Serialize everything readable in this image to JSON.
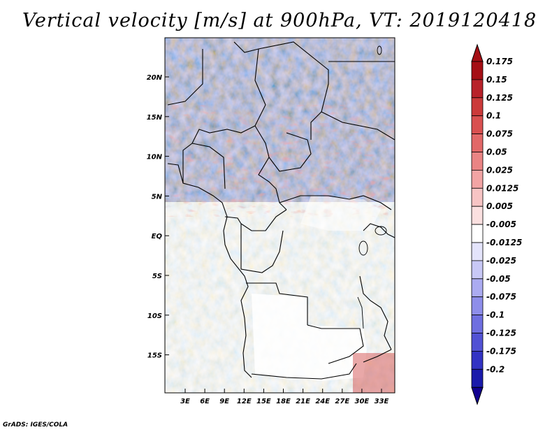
{
  "title": "Vertical velocity [m/s] at 900hPa, VT: 2019120418",
  "credit": "GrADS: IGES/COLA",
  "map": {
    "lat_labels": [
      "20N",
      "15N",
      "10N",
      "5N",
      "EQ",
      "5S",
      "10S",
      "15S"
    ],
    "lon_labels": [
      "3E",
      "6E",
      "9E",
      "12E",
      "15E",
      "18E",
      "21E",
      "24E",
      "27E",
      "30E",
      "33E"
    ]
  },
  "colorbar": {
    "levels": [
      {
        "label": "0.175",
        "color": "#a50f15"
      },
      {
        "label": "0.15",
        "color": "#b8222a"
      },
      {
        "label": "0.125",
        "color": "#cb3a3a"
      },
      {
        "label": "0.1",
        "color": "#d95050"
      },
      {
        "label": "0.075",
        "color": "#e26868"
      },
      {
        "label": "0.05",
        "color": "#ea8484"
      },
      {
        "label": "0.025",
        "color": "#f2a4a4"
      },
      {
        "label": "0.0125",
        "color": "#f7c4c4"
      },
      {
        "label": "0.005",
        "color": "#fbe0e0"
      },
      {
        "label": "-0.005",
        "color": "#ffffff"
      },
      {
        "label": "-0.0125",
        "color": "#e4e4fb"
      },
      {
        "label": "-0.025",
        "color": "#c8c8f6"
      },
      {
        "label": "-0.05",
        "color": "#ababf1"
      },
      {
        "label": "-0.075",
        "color": "#8e8eea"
      },
      {
        "label": "-0.1",
        "color": "#6f6fe0"
      },
      {
        "label": "-0.125",
        "color": "#5252d4"
      },
      {
        "label": "-0.175",
        "color": "#3333c4"
      },
      {
        "label": "-0.2",
        "color": "#1a1aab"
      }
    ],
    "top_color": "#a50f15",
    "bottom_color": "#110090"
  }
}
